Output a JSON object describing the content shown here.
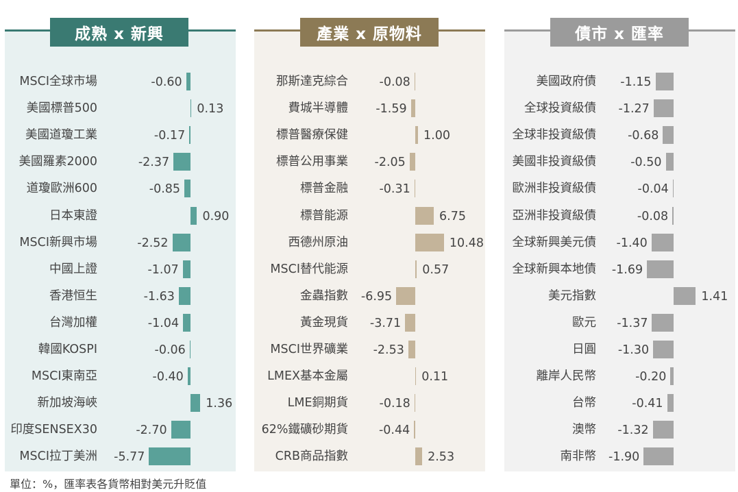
{
  "footnote": "單位：%，匯率表各貨幣相對美元升貶值",
  "colors": {
    "panel1_bar": "#5aa199",
    "panel1_header": "#3a7a72",
    "panel1_bg": "#e8f1f1",
    "panel2_bar": "#c4b49a",
    "panel2_header": "#8c7a55",
    "panel2_bg": "#f4f1ec",
    "panel3_bar": "#a6a6a6",
    "panel3_header": "#9b9b9b",
    "panel3_bg": "#f2f2f2"
  },
  "chart_data": [
    {
      "type": "bar",
      "orientation": "horizontal",
      "title": "成熟 x 新興",
      "categories": [
        "MSCI全球市場",
        "美國標普500",
        "美國道瓊工業",
        "美國羅素2000",
        "道瓊歐洲600",
        "日本東證",
        "MSCI新興市場",
        "中國上證",
        "香港恒生",
        "台灣加權",
        "韓國KOSPI",
        "MSCI東南亞",
        "新加坡海峽",
        "印度SENSEX30",
        "MSCI拉丁美洲"
      ],
      "values": [
        -0.6,
        0.13,
        -0.17,
        -2.37,
        -0.85,
        0.9,
        -2.52,
        -1.07,
        -1.63,
        -1.04,
        -0.06,
        -0.4,
        1.36,
        -2.7,
        -5.77
      ],
      "labels": [
        "-0.60",
        "0.13",
        "-0.17",
        "-2.37",
        "-0.85",
        "0.90",
        "-2.52",
        "-1.07",
        "-1.63",
        "-1.04",
        "-0.06",
        "-0.40",
        "1.36",
        "-2.70",
        "-5.77"
      ]
    },
    {
      "type": "bar",
      "orientation": "horizontal",
      "title": "產業 x 原物料",
      "categories": [
        "那斯達克綜合",
        "費城半導體",
        "標普醫療保健",
        "標普公用事業",
        "標普金融",
        "標普能源",
        "西德州原油",
        "MSCI替代能源",
        "金蟲指數",
        "黃金現貨",
        "MSCI世界礦業",
        "LMEX基本金屬",
        "LME銅期貨",
        "62%鐵礦砂期貨",
        "CRB商品指數"
      ],
      "values": [
        -0.08,
        -1.59,
        1.0,
        -2.05,
        -0.31,
        6.75,
        10.48,
        0.57,
        -6.95,
        -3.71,
        -2.53,
        0.11,
        -0.18,
        -0.44,
        2.53
      ],
      "labels": [
        "-0.08",
        "-1.59",
        "1.00",
        "-2.05",
        "-0.31",
        "6.75",
        "10.48",
        "0.57",
        "-6.95",
        "-3.71",
        "-2.53",
        "0.11",
        "-0.18",
        "-0.44",
        "2.53"
      ]
    },
    {
      "type": "bar",
      "orientation": "horizontal",
      "title": "債市 x 匯率",
      "categories": [
        "美國政府債",
        "全球投資級債",
        "全球非投資級債",
        "美國非投資級債",
        "歐洲非投資級債",
        "亞洲非投資級債",
        "全球新興美元債",
        "全球新興本地債",
        "美元指數",
        "歐元",
        "日圓",
        "離岸人民幣",
        "台幣",
        "澳幣",
        "南非幣"
      ],
      "values": [
        -1.15,
        -1.27,
        -0.68,
        -0.5,
        -0.04,
        -0.08,
        -1.4,
        -1.69,
        1.41,
        -1.37,
        -1.3,
        -0.2,
        -0.41,
        -1.32,
        -1.9
      ],
      "labels": [
        "-1.15",
        "-1.27",
        "-0.68",
        "-0.50",
        "-0.04",
        "-0.08",
        "-1.40",
        "-1.69",
        "1.41",
        "-1.37",
        "-1.30",
        "-0.20",
        "-0.41",
        "-1.32",
        "-1.90"
      ]
    }
  ]
}
